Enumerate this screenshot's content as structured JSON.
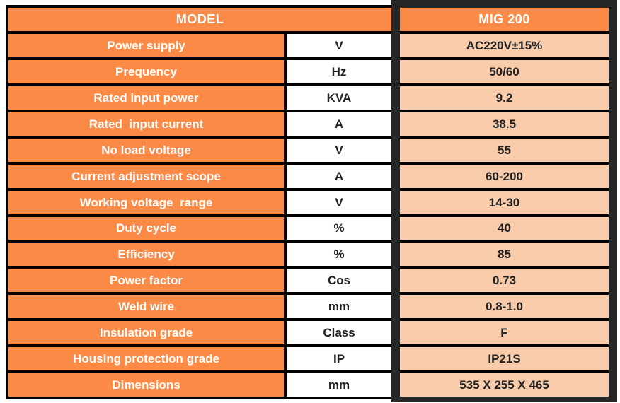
{
  "table": {
    "header": {
      "model_label": "MODEL",
      "model_value": "MIG 200"
    },
    "rows": [
      {
        "name": "Power supply",
        "unit": "V",
        "value": "AC220V±15%"
      },
      {
        "name": "Prequency",
        "unit": "Hz",
        "value": "50/60"
      },
      {
        "name": "Rated input power",
        "unit": "KVA",
        "value": "9.2"
      },
      {
        "name": "Rated  input current",
        "unit": "A",
        "value": "38.5"
      },
      {
        "name": "No load voltage",
        "unit": "V",
        "value": "55"
      },
      {
        "name": "Current adjustment scope",
        "unit": "A",
        "value": "60-200"
      },
      {
        "name": "Working voltage  range",
        "unit": "V",
        "value": "14-30"
      },
      {
        "name": "Duty cycle",
        "unit": "%",
        "value": "40"
      },
      {
        "name": "Efficiency",
        "unit": "%",
        "value": "85"
      },
      {
        "name": "Power factor",
        "unit": "Cos",
        "value": "0.73"
      },
      {
        "name": "Weld wire",
        "unit": "mm",
        "value": "0.8-1.0"
      },
      {
        "name": "Insulation grade",
        "unit": "Class",
        "value": "F"
      },
      {
        "name": "Housing protection grade",
        "unit": "IP",
        "value": "IP21S"
      },
      {
        "name": "Dimensions",
        "unit": "mm",
        "value": "535 X 255 X 465"
      }
    ]
  },
  "colors": {
    "orange": "#FB8A47",
    "peach": "#F8CBAA",
    "frame": "#262626",
    "grid": "#000000"
  }
}
